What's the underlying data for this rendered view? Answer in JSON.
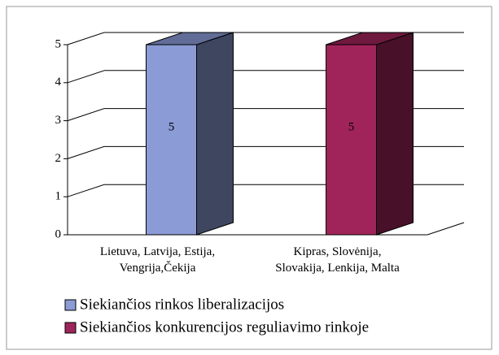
{
  "chart_data": {
    "type": "bar3d",
    "categories": [
      [
        "Lietuva, Latvija, Estija,",
        "Vengrija,Čekija"
      ],
      [
        "Kipras, Slovėnija,",
        "Slovakija, Lenkija, Malta"
      ]
    ],
    "series": [
      {
        "name": "Siekiančios rinkos liberalizacijos",
        "color": "#8a9bd6",
        "values": [
          5,
          null
        ]
      },
      {
        "name": "Siekiančios konkurencijos reguliavimo rinkoje",
        "color": "#a0245a",
        "values": [
          null,
          5
        ]
      }
    ],
    "ylim": [
      0,
      5
    ],
    "yticks": [
      0,
      1,
      2,
      3,
      4,
      5
    ],
    "grid": true,
    "legend": "bottom"
  }
}
